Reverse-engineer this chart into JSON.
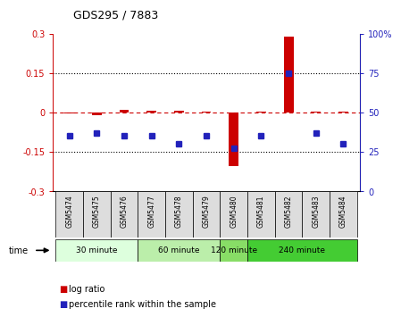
{
  "title": "GDS295 / 7883",
  "samples": [
    "GSM5474",
    "GSM5475",
    "GSM5476",
    "GSM5477",
    "GSM5478",
    "GSM5479",
    "GSM5480",
    "GSM5481",
    "GSM5482",
    "GSM5483",
    "GSM5484"
  ],
  "log_ratio": [
    -0.005,
    -0.01,
    0.01,
    0.005,
    0.005,
    0.002,
    -0.205,
    0.002,
    0.29,
    0.003,
    0.002
  ],
  "percentile_rank": [
    35,
    37,
    35,
    35,
    30,
    35,
    27,
    35,
    75,
    37,
    30
  ],
  "ylim_left": [
    -0.3,
    0.3
  ],
  "ylim_right": [
    0,
    100
  ],
  "yticks_left": [
    -0.3,
    -0.15,
    0,
    0.15,
    0.3
  ],
  "yticks_right": [
    0,
    25,
    50,
    75,
    100
  ],
  "ytick_labels_left": [
    "-0.3",
    "-0.15",
    "0",
    "0.15",
    "0.3"
  ],
  "ytick_labels_right": [
    "0",
    "25",
    "50",
    "75",
    "100%"
  ],
  "left_color": "#cc0000",
  "right_color": "#2222bb",
  "hline_dotted": [
    0.15,
    -0.15
  ],
  "hline_dashed": 0.0,
  "groups": [
    {
      "label": "30 minute",
      "start": 0,
      "end": 3,
      "color": "#ddffdd"
    },
    {
      "label": "60 minute",
      "start": 3,
      "end": 6,
      "color": "#bbeeaa"
    },
    {
      "label": "120 minute",
      "start": 6,
      "end": 7,
      "color": "#88dd66"
    },
    {
      "label": "240 minute",
      "start": 7,
      "end": 11,
      "color": "#44cc33"
    }
  ],
  "background_color": "#ffffff",
  "sample_bg": "#dddddd",
  "legend_red_label": "log ratio",
  "legend_blue_label": "percentile rank within the sample"
}
